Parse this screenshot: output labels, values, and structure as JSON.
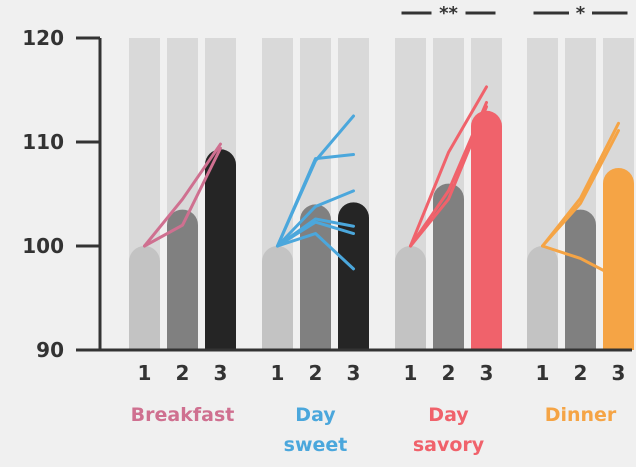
{
  "chart_data": {
    "type": "bar",
    "ylim": [
      90,
      120
    ],
    "yticks": [
      90,
      100,
      110,
      120
    ],
    "categories": [
      "1",
      "2",
      "3"
    ],
    "background_bar_value": 120,
    "colors": {
      "background_bar": "#d9d9d9",
      "axis": "#333333",
      "bar_1": "#c3c3c3",
      "bar_2": "#808080"
    },
    "groups": [
      {
        "label": "Breakfast",
        "color": "#cf7090",
        "bar3_color": "#252525",
        "values": [
          100,
          103.5,
          109.3
        ],
        "lines": [
          [
            100,
            104.5,
            109.8
          ],
          [
            100,
            102,
            109.4
          ]
        ]
      },
      {
        "label": "Day sweet",
        "color": "#4ba7dc",
        "bar3_color": "#252525",
        "values": [
          100,
          104,
          104.2
        ],
        "lines": [
          [
            100,
            108.2,
            112.5
          ],
          [
            100,
            108.4,
            108.8
          ],
          [
            100,
            103.8,
            105.3
          ],
          [
            100,
            102.6,
            101.9
          ],
          [
            100,
            102.3,
            101.2
          ],
          [
            100,
            101.2,
            97.8
          ]
        ]
      },
      {
        "label": "Day savory",
        "color": "#f0626b",
        "bar3_color": "#f0626b",
        "values": [
          100,
          106,
          113
        ],
        "lines": [
          [
            100,
            109,
            115.3
          ],
          [
            100,
            105.3,
            113.8
          ],
          [
            100,
            104.5,
            113.4
          ]
        ],
        "significance": "**"
      },
      {
        "label": "Dinner",
        "color": "#f5a445",
        "bar3_color": "#f5a445",
        "values": [
          100,
          103.5,
          107.5
        ],
        "lines": [
          [
            100,
            104.6,
            111.8
          ],
          [
            100,
            104.1,
            111.1
          ],
          [
            100,
            98.8,
            96.9
          ]
        ],
        "significance": "*"
      }
    ]
  }
}
